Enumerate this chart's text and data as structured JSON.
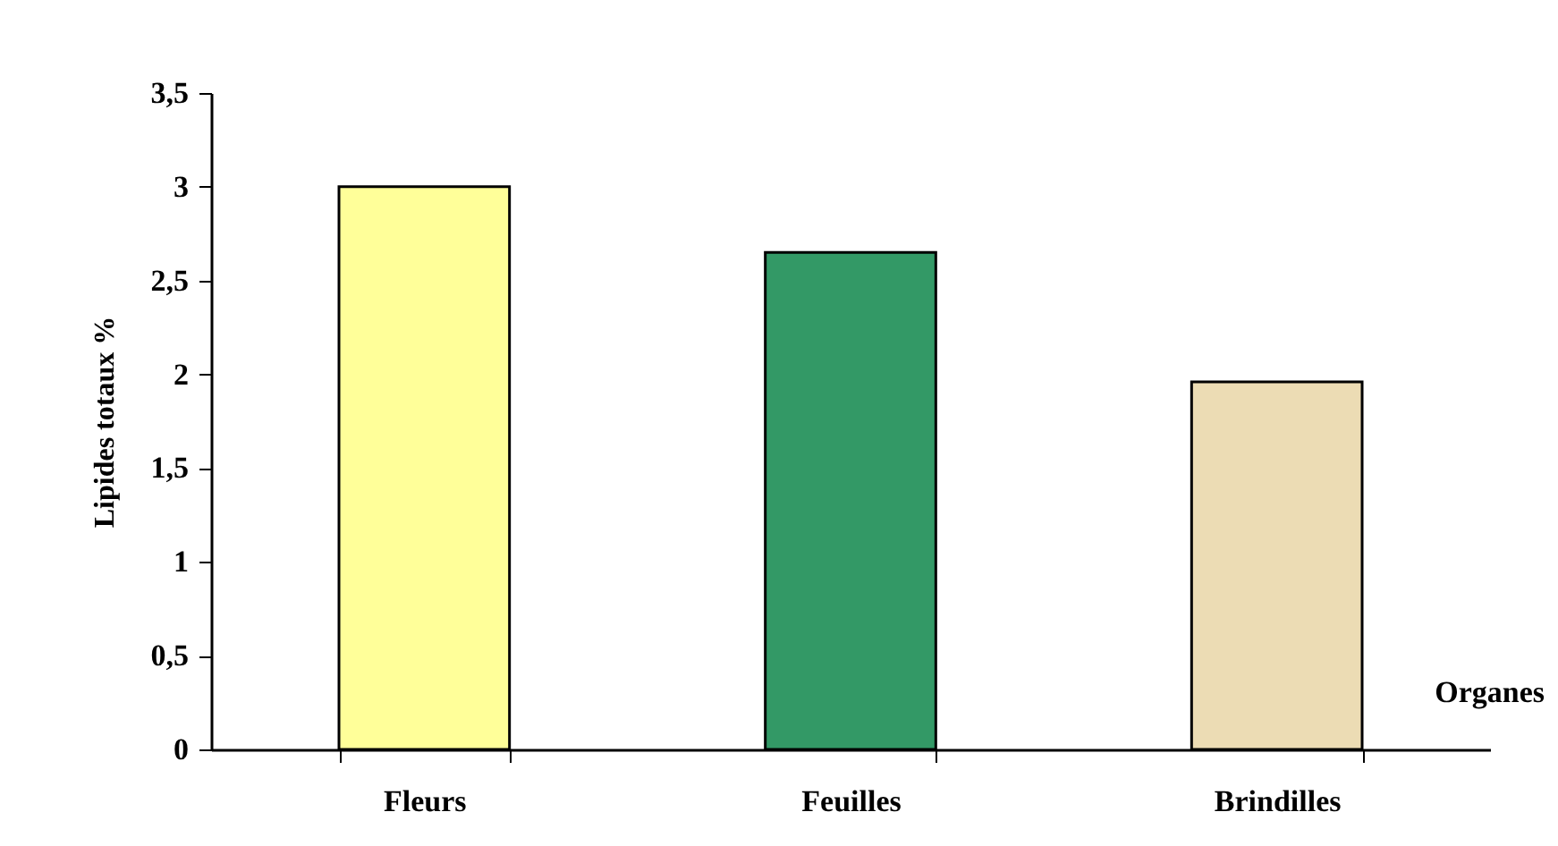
{
  "chart_data": {
    "type": "bar",
    "xlabel": "Organes",
    "ylabel": "Lipides totaux %",
    "categories": [
      "Fleurs",
      "Feuilles",
      "Brindilles"
    ],
    "values": [
      3.0,
      2.65,
      1.96
    ],
    "colors": [
      "#ffff99",
      "#339966",
      "#ecdcb4"
    ],
    "ylim": [
      0,
      3.5
    ],
    "yticks": [
      0,
      {
        "value": 0.5,
        "label": "0,5"
      },
      1,
      {
        "value": 1.5,
        "label": "1,5"
      },
      2,
      {
        "value": 2.5,
        "label": "2,5"
      },
      3,
      {
        "value": 3.5,
        "label": "3,5"
      }
    ],
    "grid": false
  }
}
